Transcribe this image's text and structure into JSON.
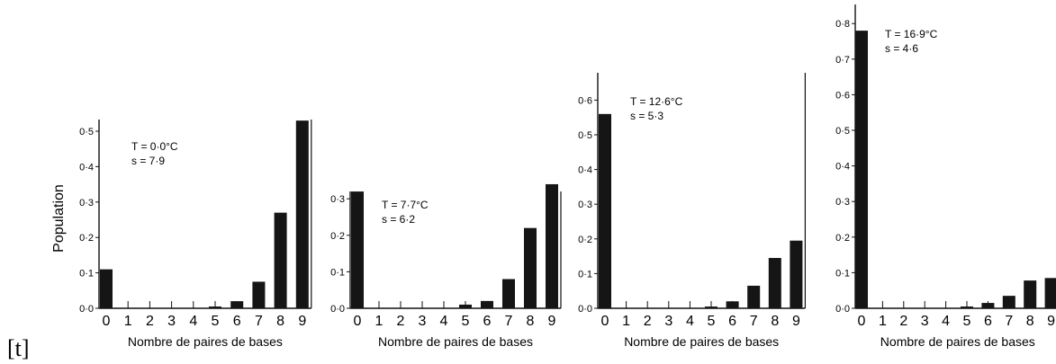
{
  "figure": {
    "left_marker": "[t]",
    "ylabel": "Population",
    "xlabel_text": "Nombre de paires de bases"
  },
  "chart_data": [
    {
      "type": "bar",
      "title": "",
      "annotation_lines": [
        "T = 0·0°C",
        "s = 7·9"
      ],
      "xlabel": "Nombre de paires de bases",
      "ylabel": "Population",
      "categories": [
        "0",
        "1",
        "2",
        "3",
        "4",
        "5",
        "6",
        "7",
        "8",
        "9"
      ],
      "values": [
        0.11,
        0.0,
        0.0,
        0.0,
        0.0,
        0.005,
        0.02,
        0.075,
        0.27,
        0.53
      ],
      "ylim": [
        0,
        0.55
      ],
      "yticks": [
        0.0,
        0.1,
        0.2,
        0.3,
        0.4,
        0.5
      ],
      "ytick_labels": [
        "0·0",
        "0·1",
        "0·2",
        "0·3",
        "0·4",
        "0·5"
      ],
      "grid": false,
      "legend": "none"
    },
    {
      "type": "bar",
      "title": "",
      "annotation_lines": [
        "T = 7·7°C",
        "s = 6·2"
      ],
      "xlabel": "Nombre de paires de bases",
      "ylabel": "",
      "categories": [
        "0",
        "1",
        "2",
        "3",
        "4",
        "5",
        "6",
        "7",
        "8",
        "9"
      ],
      "values": [
        0.32,
        0.0,
        0.0,
        0.0,
        0.0,
        0.01,
        0.02,
        0.08,
        0.22,
        0.34
      ],
      "ylim": [
        0,
        0.36
      ],
      "yticks": [
        0.0,
        0.1,
        0.2,
        0.3
      ],
      "ytick_labels": [
        "0·0",
        "0·1",
        "0·2",
        "0·3"
      ],
      "grid": false,
      "legend": "none"
    },
    {
      "type": "bar",
      "title": "",
      "annotation_lines": [
        "T = 12·6°C",
        "s = 5·3"
      ],
      "xlabel": "Nombre de paires de bases",
      "ylabel": "",
      "categories": [
        "0",
        "1",
        "2",
        "3",
        "4",
        "5",
        "6",
        "7",
        "8",
        "9"
      ],
      "values": [
        0.56,
        0.0,
        0.0,
        0.0,
        0.0,
        0.005,
        0.02,
        0.065,
        0.145,
        0.195
      ],
      "ylim": [
        0,
        0.63
      ],
      "yticks": [
        0.0,
        0.1,
        0.2,
        0.3,
        0.4,
        0.5,
        0.6
      ],
      "ytick_labels": [
        "0·0",
        "0·1",
        "0·2",
        "0·3",
        "0·4",
        "0·5",
        "0·6"
      ],
      "grid": false,
      "legend": "none"
    },
    {
      "type": "bar",
      "title": "",
      "annotation_lines": [
        "T = 16·9°C",
        "s = 4·6"
      ],
      "xlabel": "Nombre de paires de bases",
      "ylabel": "",
      "categories": [
        "0",
        "1",
        "2",
        "3",
        "4",
        "5",
        "6",
        "7",
        "8",
        "9"
      ],
      "values": [
        0.78,
        0.0,
        0.0,
        0.0,
        0.0,
        0.005,
        0.015,
        0.035,
        0.078,
        0.085
      ],
      "ylim": [
        0,
        0.83
      ],
      "yticks": [
        0.0,
        0.1,
        0.2,
        0.3,
        0.4,
        0.5,
        0.6,
        0.7,
        0.8
      ],
      "ytick_labels": [
        "0·0",
        "0·1",
        "0·2",
        "0·3",
        "0·4",
        "0·5",
        "0·6",
        "0·7",
        "0·8"
      ],
      "grid": false,
      "legend": "none"
    }
  ]
}
